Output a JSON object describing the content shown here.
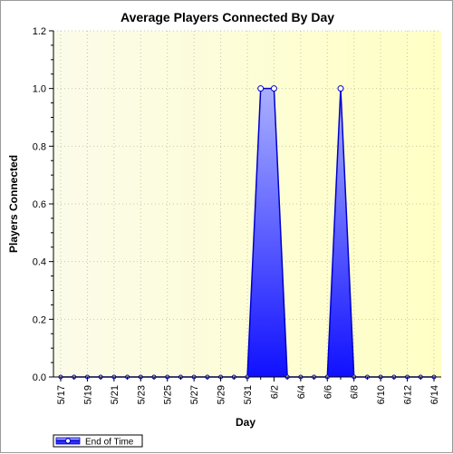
{
  "chart_data": {
    "type": "area",
    "title": "Average Players Connected By Day",
    "xlabel": "Day",
    "ylabel": "Players Connected",
    "ylim": [
      0,
      1.2
    ],
    "yticks": [
      "0.0",
      "0.2",
      "0.4",
      "0.6",
      "0.8",
      "1.0",
      "1.2"
    ],
    "xtick_labels": [
      "5/17",
      "5/19",
      "5/21",
      "5/23",
      "5/25",
      "5/27",
      "5/29",
      "5/31",
      "6/2",
      "6/4",
      "6/6",
      "6/8",
      "6/10",
      "6/12",
      "6/14"
    ],
    "x": [
      "5/17",
      "5/18",
      "5/19",
      "5/20",
      "5/21",
      "5/22",
      "5/23",
      "5/24",
      "5/25",
      "5/26",
      "5/27",
      "5/28",
      "5/29",
      "5/30",
      "5/31",
      "6/1",
      "6/2",
      "6/3",
      "6/4",
      "6/5",
      "6/6",
      "6/7",
      "6/8",
      "6/9",
      "6/10",
      "6/11",
      "6/12",
      "6/13",
      "6/14"
    ],
    "series": [
      {
        "name": "End of Time",
        "color": "#1a1aff",
        "values": [
          0,
          0,
          0,
          0,
          0,
          0,
          0,
          0,
          0,
          0,
          0,
          0,
          0,
          0,
          0,
          1,
          1,
          0,
          0,
          0,
          0,
          1,
          0,
          0,
          0,
          0,
          0,
          0,
          0
        ]
      }
    ],
    "grid": true,
    "legend": "bottom-left",
    "background_gradient": [
      "#fbfbe6",
      "#ffffc0"
    ]
  }
}
